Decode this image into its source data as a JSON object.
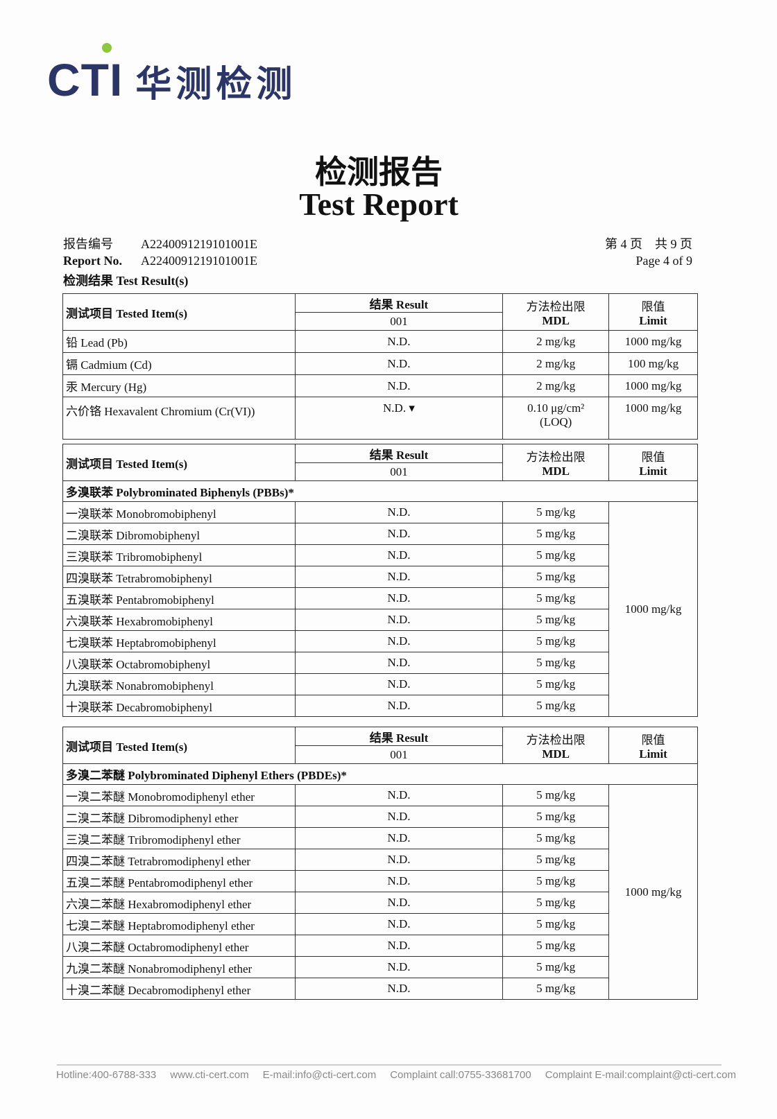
{
  "logo": {
    "text": "CTI",
    "cn": "华测检测",
    "accent": "#8dc63f",
    "brand": "#2b3566"
  },
  "title": {
    "cn": "检测报告",
    "en": "Test Report"
  },
  "report": {
    "no_label_cn": "报告编号",
    "no_label_en": "Report No.",
    "no_value": "A2240091219101001E",
    "page_cn": "第 4 页　共 9 页",
    "page_en": "Page 4 of 9",
    "results_label": "检测结果 Test Result(s)"
  },
  "header": {
    "tested_item": "测试项目  Tested Item(s)",
    "result": "结果 Result",
    "sample": "001",
    "mdl_cn": "方法检出限",
    "mdl_en": "MDL",
    "limit_cn": "限值",
    "limit_en": "Limit"
  },
  "metals": [
    {
      "item": "铅  Lead (Pb)",
      "result": "N.D.",
      "mdl": "2 mg/kg",
      "limit": "1000 mg/kg"
    },
    {
      "item": "镉  Cadmium (Cd)",
      "result": "N.D.",
      "mdl": "2 mg/kg",
      "limit": "100 mg/kg"
    },
    {
      "item": "汞  Mercury (Hg)",
      "result": "N.D.",
      "mdl": "2 mg/kg",
      "limit": "1000 mg/kg"
    },
    {
      "item": "六价铬  Hexavalent Chromium (Cr(VI))",
      "result": "N.D. ▾",
      "mdl": "0.10 μg/cm²",
      "mdl2": "(LOQ)",
      "limit": "1000 mg/kg"
    }
  ],
  "pbb": {
    "group": "多溴联苯  Polybrominated Biphenyls (PBBs)*",
    "limit": "1000 mg/kg",
    "rows": [
      {
        "item": "一溴联苯  Monobromobiphenyl",
        "result": "N.D.",
        "mdl": "5 mg/kg"
      },
      {
        "item": "二溴联苯  Dibromobiphenyl",
        "result": "N.D.",
        "mdl": "5 mg/kg"
      },
      {
        "item": "三溴联苯  Tribromobiphenyl",
        "result": "N.D.",
        "mdl": "5 mg/kg"
      },
      {
        "item": "四溴联苯  Tetrabromobiphenyl",
        "result": "N.D.",
        "mdl": "5 mg/kg"
      },
      {
        "item": "五溴联苯  Pentabromobiphenyl",
        "result": "N.D.",
        "mdl": "5 mg/kg"
      },
      {
        "item": "六溴联苯  Hexabromobiphenyl",
        "result": "N.D.",
        "mdl": "5 mg/kg"
      },
      {
        "item": "七溴联苯  Heptabromobiphenyl",
        "result": "N.D.",
        "mdl": "5 mg/kg"
      },
      {
        "item": "八溴联苯  Octabromobiphenyl",
        "result": "N.D.",
        "mdl": "5 mg/kg"
      },
      {
        "item": "九溴联苯  Nonabromobiphenyl",
        "result": "N.D.",
        "mdl": "5 mg/kg"
      },
      {
        "item": "十溴联苯  Decabromobiphenyl",
        "result": "N.D.",
        "mdl": "5 mg/kg"
      }
    ]
  },
  "pbde": {
    "group": "多溴二苯醚  Polybrominated Diphenyl Ethers (PBDEs)*",
    "limit": "1000 mg/kg",
    "rows": [
      {
        "item": "一溴二苯醚  Monobromodiphenyl ether",
        "result": "N.D.",
        "mdl": "5 mg/kg"
      },
      {
        "item": "二溴二苯醚  Dibromodiphenyl ether",
        "result": "N.D.",
        "mdl": "5 mg/kg"
      },
      {
        "item": "三溴二苯醚  Tribromodiphenyl ether",
        "result": "N.D.",
        "mdl": "5 mg/kg"
      },
      {
        "item": "四溴二苯醚  Tetrabromodiphenyl ether",
        "result": "N.D.",
        "mdl": "5 mg/kg"
      },
      {
        "item": "五溴二苯醚  Pentabromodiphenyl ether",
        "result": "N.D.",
        "mdl": "5 mg/kg"
      },
      {
        "item": "六溴二苯醚  Hexabromodiphenyl ether",
        "result": "N.D.",
        "mdl": "5 mg/kg"
      },
      {
        "item": "七溴二苯醚  Heptabromodiphenyl ether",
        "result": "N.D.",
        "mdl": "5 mg/kg"
      },
      {
        "item": "八溴二苯醚  Octabromodiphenyl ether",
        "result": "N.D.",
        "mdl": "5 mg/kg"
      },
      {
        "item": "九溴二苯醚  Nonabromodiphenyl ether",
        "result": "N.D.",
        "mdl": "5 mg/kg"
      },
      {
        "item": "十溴二苯醚  Decabromodiphenyl ether",
        "result": "N.D.",
        "mdl": "5 mg/kg"
      }
    ]
  },
  "footer": [
    "Hotline:400-6788-333",
    "www.cti-cert.com",
    "E-mail:info@cti-cert.com",
    "Complaint call:0755-33681700",
    "Complaint E-mail:complaint@cti-cert.com"
  ]
}
